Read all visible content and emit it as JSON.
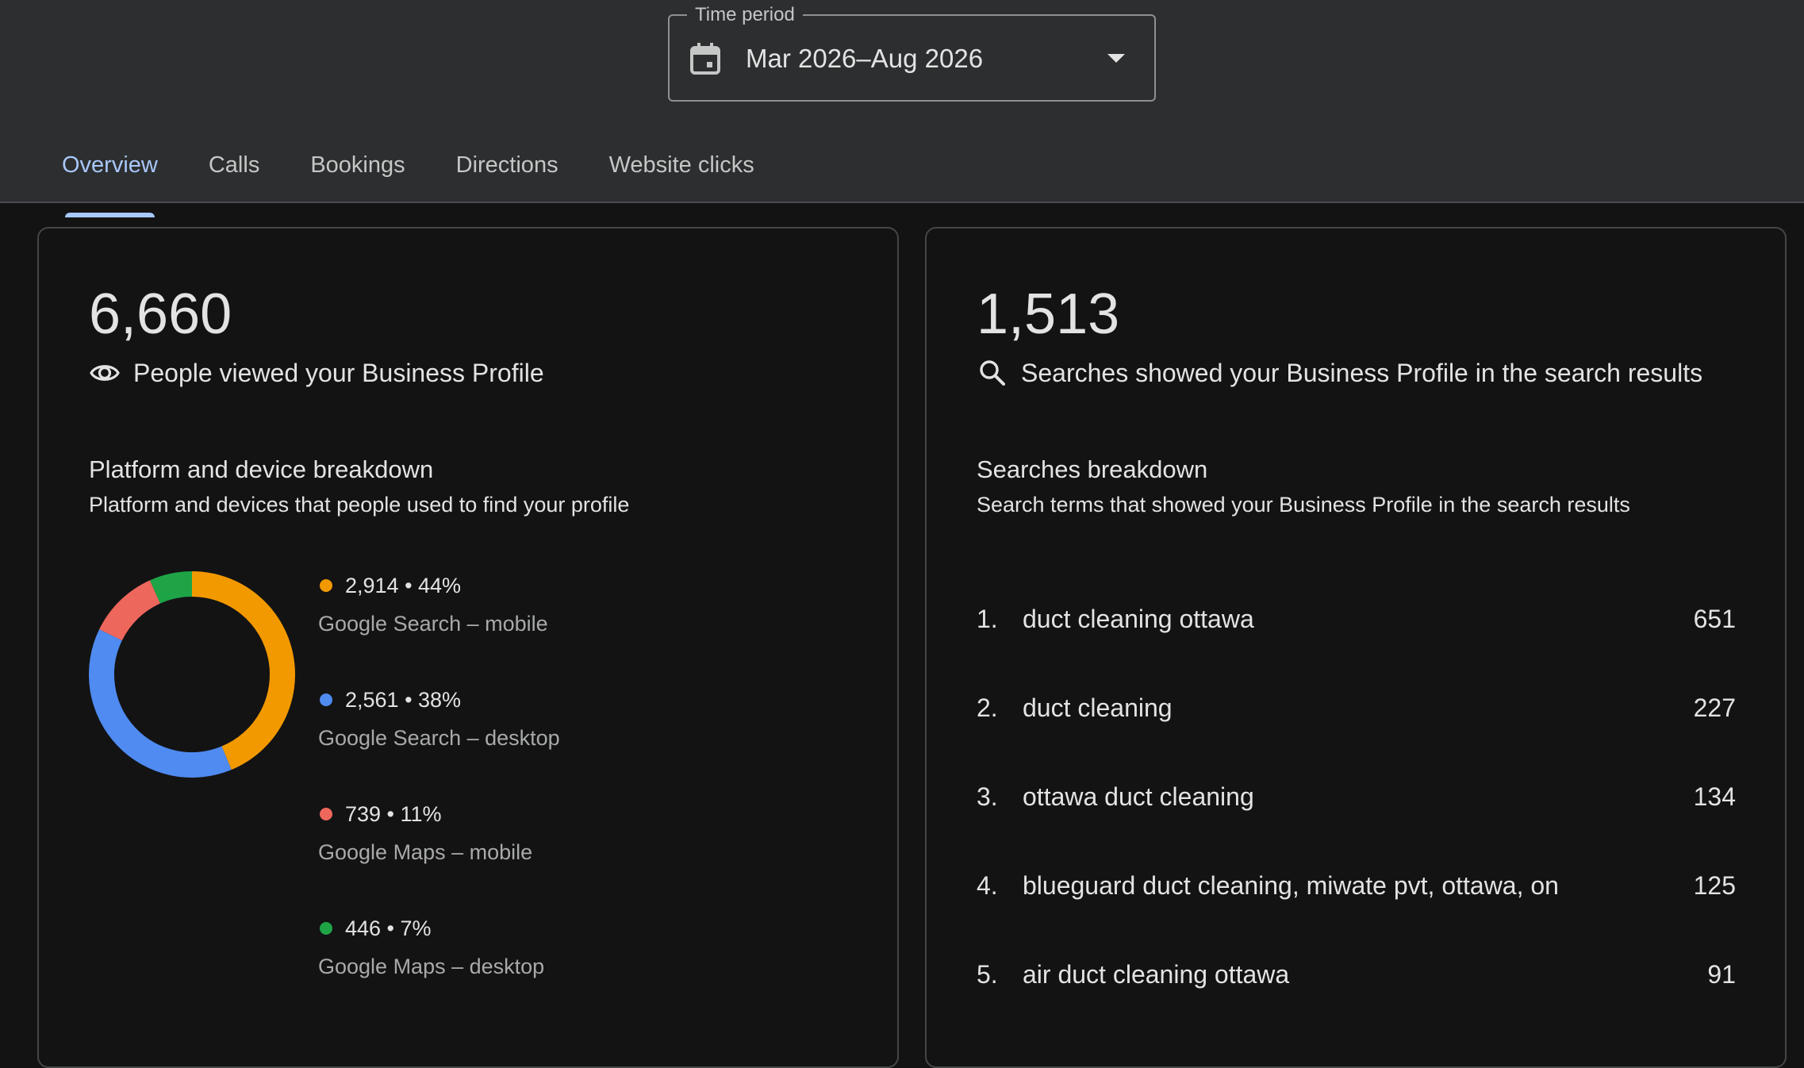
{
  "time_period": {
    "label": "Time period",
    "value": "Mar 2026–Aug 2026"
  },
  "tabs": [
    {
      "label": "Overview",
      "active": true
    },
    {
      "label": "Calls",
      "active": false
    },
    {
      "label": "Bookings",
      "active": false
    },
    {
      "label": "Directions",
      "active": false
    },
    {
      "label": "Website clicks",
      "active": false
    }
  ],
  "views_card": {
    "total": "6,660",
    "caption": "People viewed your Business Profile",
    "icon": "eye-icon",
    "section_title": "Platform and device breakdown",
    "section_subtitle": "Platform and devices that people used to find your profile"
  },
  "searches_card": {
    "total": "1,513",
    "caption": "Searches showed your Business Profile in the search results",
    "icon": "search-icon",
    "section_title": "Searches breakdown",
    "section_subtitle": "Search terms that showed your Business Profile in the search results",
    "terms": [
      {
        "rank": "1.",
        "term": "duct cleaning ottawa",
        "count": "651"
      },
      {
        "rank": "2.",
        "term": "duct cleaning",
        "count": "227"
      },
      {
        "rank": "3.",
        "term": "ottawa duct cleaning",
        "count": "134"
      },
      {
        "rank": "4.",
        "term": "blueguard duct cleaning, miwate pvt, ottawa, on",
        "count": "125"
      },
      {
        "rank": "5.",
        "term": "air duct cleaning ottawa",
        "count": "91"
      }
    ]
  },
  "chart_data": {
    "type": "pie",
    "donut": true,
    "categories": [
      "Google Search – mobile",
      "Google Search – desktop",
      "Google Maps – mobile",
      "Google Maps – desktop"
    ],
    "values": [
      2914,
      2561,
      739,
      446
    ],
    "labels": [
      "2,914 • 44%",
      "2,561 • 38%",
      "739 • 11%",
      "446 • 7%"
    ],
    "colors": [
      "#f29900",
      "#4f8bf1",
      "#ee675c",
      "#1ea446"
    ],
    "legend_position": "right"
  },
  "colors": {
    "accent": "#a8c7fa",
    "header_bg": "#2d2e30",
    "page_bg": "#131314"
  }
}
